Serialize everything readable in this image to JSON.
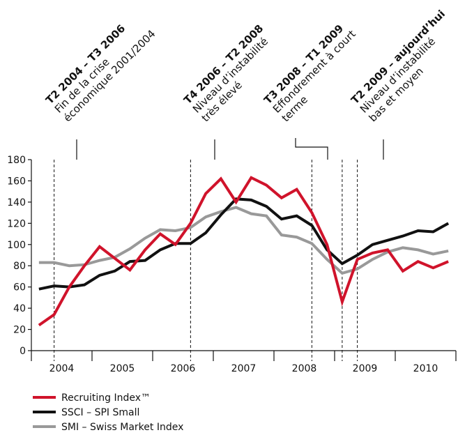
{
  "chart_data": {
    "type": "line",
    "x": [
      2004.125,
      2004.375,
      2004.625,
      2004.875,
      2005.125,
      2005.375,
      2005.625,
      2005.875,
      2006.125,
      2006.375,
      2006.625,
      2006.875,
      2007.125,
      2007.375,
      2007.625,
      2007.875,
      2008.125,
      2008.375,
      2008.625,
      2008.875,
      2009.125,
      2009.375,
      2009.625,
      2009.875,
      2010.125,
      2010.375,
      2010.625,
      2010.875
    ],
    "series": [
      {
        "name": "Recruiting Index™",
        "color": "#d0132b",
        "values": [
          24,
          34,
          60,
          80,
          98,
          87,
          76,
          95,
          110,
          100,
          120,
          148,
          162,
          140,
          163,
          156,
          144,
          152,
          130,
          100,
          46,
          86,
          92,
          95,
          75,
          84,
          78,
          84
        ]
      },
      {
        "name": "SSCI – SPI Small",
        "color": "#111111",
        "values": [
          58,
          61,
          60,
          62,
          71,
          75,
          84,
          85,
          95,
          101,
          101,
          111,
          128,
          143,
          142,
          136,
          124,
          127,
          118,
          95,
          82,
          90,
          100,
          104,
          108,
          113,
          112,
          120
        ]
      },
      {
        "name": "SMI – Swiss Market Index",
        "color": "#999999",
        "values": [
          83,
          83,
          80,
          81,
          85,
          88,
          96,
          106,
          114,
          113,
          116,
          126,
          131,
          135,
          129,
          127,
          109,
          107,
          101,
          86,
          73,
          77,
          86,
          93,
          97,
          95,
          91,
          94
        ]
      }
    ],
    "xlim": [
      2004,
      2011
    ],
    "xticks": [
      {
        "value": 2004.5,
        "label": "2004"
      },
      {
        "value": 2005.5,
        "label": "2005"
      },
      {
        "value": 2006.5,
        "label": "2006"
      },
      {
        "value": 2007.5,
        "label": "2007"
      },
      {
        "value": 2008.5,
        "label": "2008"
      },
      {
        "value": 2009.5,
        "label": "2009"
      },
      {
        "value": 2010.5,
        "label": "2010"
      }
    ],
    "ylim": [
      0,
      180
    ],
    "yticks": [
      0,
      20,
      40,
      60,
      80,
      100,
      120,
      140,
      160,
      180
    ],
    "period_boundaries": [
      2004.375,
      2006.625,
      2008.625,
      2009.125,
      2009.375
    ],
    "periods": [
      {
        "title": "T2 2004 – T3 2006",
        "lines": [
          "Fin de la crise",
          "économique 2001/2004"
        ]
      },
      {
        "title": "T4 2006 – T2 2008",
        "lines": [
          "Niveau d’instabilité",
          "très élevé"
        ]
      },
      {
        "title": "T3 2008 – T1 2009",
        "lines": [
          "Effondrement à court",
          "terme"
        ]
      },
      {
        "title": "T2 2009 – aujourd’hui",
        "lines": [
          "Niveau d’instabilité",
          "bas et moyen"
        ]
      }
    ]
  }
}
